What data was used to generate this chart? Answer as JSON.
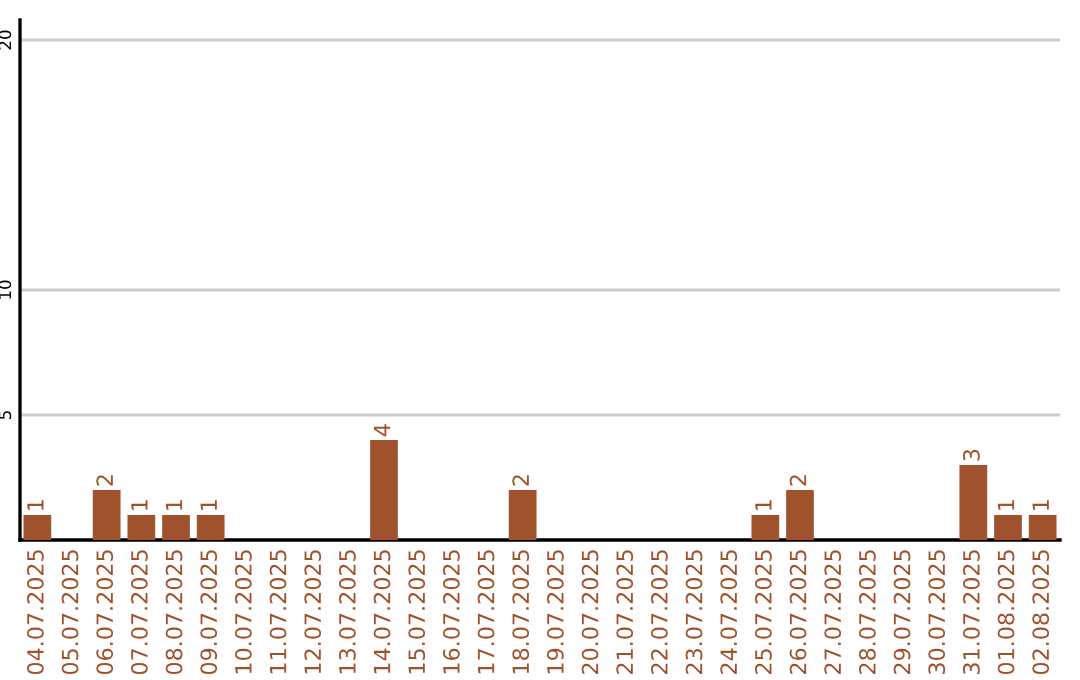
{
  "chart_data": {
    "type": "bar",
    "categories": [
      "04.07.2025",
      "05.07.2025",
      "06.07.2025",
      "07.07.2025",
      "08.07.2025",
      "09.07.2025",
      "10.07.2025",
      "11.07.2025",
      "12.07.2025",
      "13.07.2025",
      "14.07.2025",
      "15.07.2025",
      "16.07.2025",
      "17.07.2025",
      "18.07.2025",
      "19.07.2025",
      "20.07.2025",
      "21.07.2025",
      "22.07.2025",
      "23.07.2025",
      "24.07.2025",
      "25.07.2025",
      "26.07.2025",
      "27.07.2025",
      "28.07.2025",
      "29.07.2025",
      "30.07.2025",
      "31.07.2025",
      "01.08.2025",
      "02.08.2025"
    ],
    "values": [
      1,
      0,
      2,
      1,
      1,
      1,
      0,
      0,
      0,
      0,
      4,
      0,
      0,
      0,
      2,
      0,
      0,
      0,
      0,
      0,
      0,
      1,
      2,
      0,
      0,
      0,
      0,
      3,
      1,
      1
    ],
    "value_labels": [
      "1",
      null,
      "2",
      "1",
      "1",
      "1",
      null,
      null,
      null,
      null,
      "4",
      null,
      null,
      null,
      "2",
      null,
      null,
      null,
      null,
      null,
      null,
      "1",
      "2",
      null,
      null,
      null,
      null,
      "3",
      "1",
      "1"
    ],
    "color": "#a0522d",
    "ylim": [
      0,
      20.8
    ],
    "yticks": [
      5,
      10,
      20
    ],
    "grid": "y",
    "legend": false
  }
}
